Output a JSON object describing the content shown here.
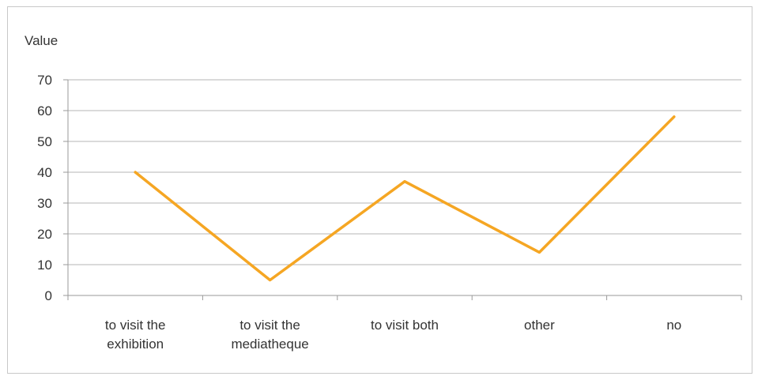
{
  "chart_data": {
    "type": "line",
    "title": "",
    "ylabel": "Value",
    "xlabel": "",
    "categories": [
      [
        "to visit the",
        "exhibition"
      ],
      [
        "to visit the",
        "mediatheque"
      ],
      [
        "to visit both"
      ],
      [
        "other"
      ],
      [
        "no"
      ]
    ],
    "series": [
      {
        "values": [
          40,
          5,
          37,
          14,
          58
        ]
      }
    ],
    "ylim": [
      0,
      70
    ],
    "yticks": [
      0,
      10,
      20,
      30,
      40,
      50,
      60,
      70
    ],
    "grid": true,
    "legend": "none",
    "colors": {
      "line": "#f5a623"
    }
  }
}
